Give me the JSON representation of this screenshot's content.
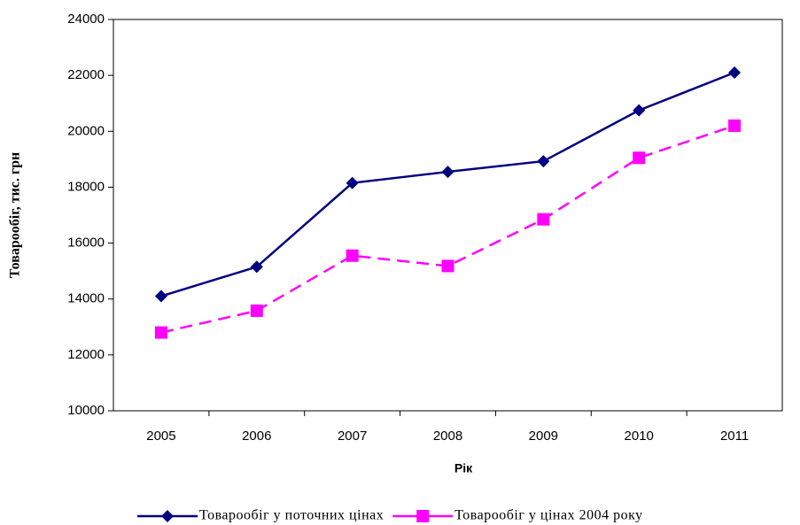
{
  "chart_data": {
    "type": "line",
    "y_label": "Товарообіг, тис. грн",
    "x_label": "Рік",
    "categories": [
      "2005",
      "2006",
      "2007",
      "2008",
      "2009",
      "2010",
      "2011"
    ],
    "series": [
      {
        "name": "Товарообіг у поточних цінах",
        "color": "#000080",
        "marker": "diamond",
        "dashed": false,
        "values": [
          14100,
          15150,
          18150,
          18550,
          18930,
          20750,
          22100
        ]
      },
      {
        "name": "Товарообіг у цінах 2004 року",
        "color": "#ff00ff",
        "marker": "square",
        "dashed": true,
        "values": [
          12800,
          13580,
          15550,
          15180,
          16850,
          19050,
          20200
        ]
      }
    ],
    "ylim": [
      10000,
      24000
    ],
    "yticks": [
      10000,
      12000,
      14000,
      16000,
      18000,
      20000,
      22000,
      24000
    ],
    "grid": false,
    "legend": "bottom"
  }
}
